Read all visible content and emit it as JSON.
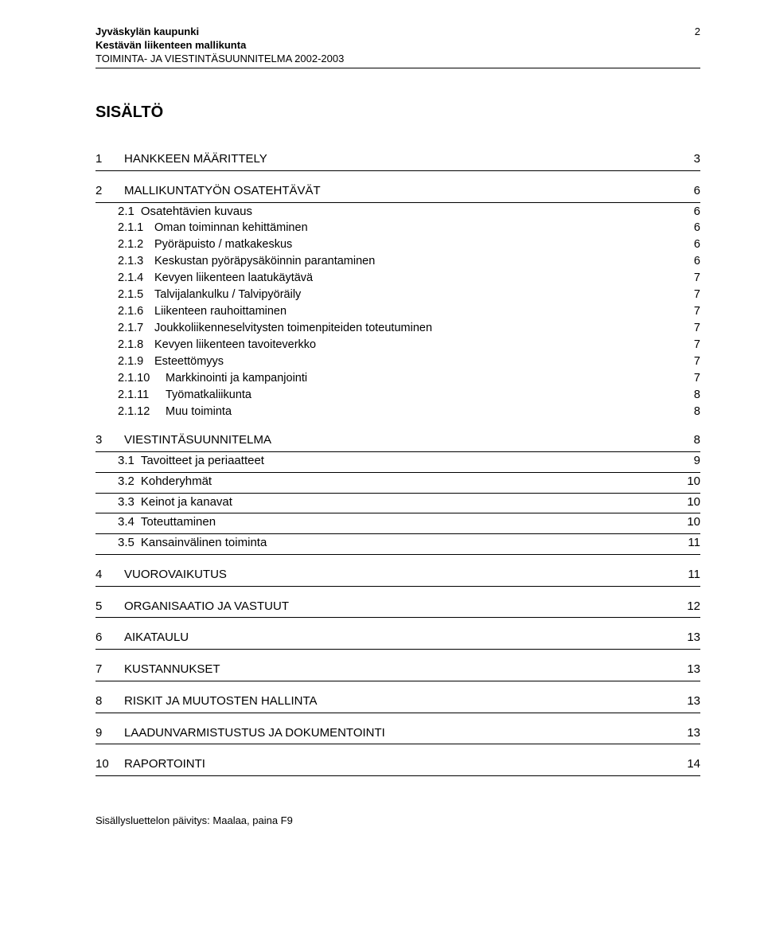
{
  "header": {
    "line1": "Jyväskylän kaupunki",
    "line2": "Kestävän liikenteen mallikunta",
    "line3": "TOIMINTA- JA VIESTINTÄSUUNNITELMA 2002-2003",
    "page_number": "2"
  },
  "toc_title": "SISÄLTÖ",
  "entries": [
    {
      "level": 1,
      "num": "1",
      "label": "HANKKEEN MÄÄRITTELY",
      "page": "3",
      "hr": true
    },
    {
      "level": 1,
      "num": "2",
      "label": "MALLIKUNTATYÖN OSATEHTÄVÄT",
      "page": "6",
      "hr": true
    },
    {
      "level": 2,
      "num": "2.1",
      "label": "Osatehtävien kuvaus",
      "page": "6",
      "hr": false
    },
    {
      "level": 3,
      "num": "2.1.1",
      "label": "Oman toiminnan kehittäminen",
      "page": "6",
      "hr": false
    },
    {
      "level": 3,
      "num": "2.1.2",
      "label": "Pyöräpuisto / matkakeskus",
      "page": "6",
      "hr": false
    },
    {
      "level": 3,
      "num": "2.1.3",
      "label": "Keskustan pyöräpysäköinnin parantaminen",
      "page": "6",
      "hr": false
    },
    {
      "level": 3,
      "num": "2.1.4",
      "label": "Kevyen liikenteen laatukäytävä",
      "page": "7",
      "hr": false
    },
    {
      "level": 3,
      "num": "2.1.5",
      "label": "Talvijalankulku / Talvipyöräily",
      "page": "7",
      "hr": false
    },
    {
      "level": 3,
      "num": "2.1.6",
      "label": "Liikenteen rauhoittaminen",
      "page": "7",
      "hr": false
    },
    {
      "level": 3,
      "num": "2.1.7",
      "label": "Joukkoliikenneselvitysten toimenpiteiden toteutuminen",
      "page": "7",
      "hr": false
    },
    {
      "level": 3,
      "num": "2.1.8",
      "label": "Kevyen liikenteen tavoiteverkko",
      "page": "7",
      "hr": false
    },
    {
      "level": 3,
      "num": "2.1.9",
      "label": "Esteettömyys",
      "page": "7",
      "hr": false
    },
    {
      "level": 3,
      "num": "2.1.10",
      "label": "Markkinointi ja kampanjointi",
      "page": "7",
      "hr": false,
      "wide": true
    },
    {
      "level": 3,
      "num": "2.1.11",
      "label": "Työmatkaliikunta",
      "page": "8",
      "hr": false,
      "wide": true
    },
    {
      "level": 3,
      "num": "2.1.12",
      "label": "Muu toiminta",
      "page": "8",
      "hr": false,
      "wide": true
    },
    {
      "level": 1,
      "num": "3",
      "label": "VIESTINTÄSUUNNITELMA",
      "page": "8",
      "hr": true
    },
    {
      "level": 2,
      "num": "3.1",
      "label": "Tavoitteet ja periaatteet",
      "page": "9",
      "hr": true
    },
    {
      "level": 2,
      "num": "3.2",
      "label": "Kohderyhmät",
      "page": "10",
      "hr": true
    },
    {
      "level": 2,
      "num": "3.3",
      "label": "Keinot ja kanavat",
      "page": "10",
      "hr": true
    },
    {
      "level": 2,
      "num": "3.4",
      "label": "Toteuttaminen",
      "page": "10",
      "hr": true
    },
    {
      "level": 2,
      "num": "3.5",
      "label": "Kansainvälinen toiminta",
      "page": "11",
      "hr": true
    },
    {
      "level": 1,
      "num": "4",
      "label": "VUOROVAIKUTUS",
      "page": "11",
      "hr": true
    },
    {
      "level": 1,
      "num": "5",
      "label": "ORGANISAATIO JA VASTUUT",
      "page": "12",
      "hr": true
    },
    {
      "level": 1,
      "num": "6",
      "label": "AIKATAULU",
      "page": "13",
      "hr": true
    },
    {
      "level": 1,
      "num": "7",
      "label": "KUSTANNUKSET",
      "page": "13",
      "hr": true
    },
    {
      "level": 1,
      "num": "8",
      "label": "RISKIT JA MUUTOSTEN HALLINTA",
      "page": "13",
      "hr": true
    },
    {
      "level": 1,
      "num": "9",
      "label": "LAADUNVARMISTUSTUS JA DOKUMENTOINTI",
      "page": "13",
      "hr": true
    },
    {
      "level": 1,
      "num": "10",
      "label": "RAPORTOINTI",
      "page": "14",
      "hr": true
    }
  ],
  "footer_note": "Sisällysluettelon päivitys: Maalaa, paina F9",
  "colors": {
    "text": "#000000",
    "background": "#ffffff",
    "rule": "#000000"
  },
  "typography": {
    "body_font": "Arial",
    "header_fontsize_pt": 10,
    "title_fontsize_pt": 15,
    "entry_fontsize_pt": 11
  }
}
